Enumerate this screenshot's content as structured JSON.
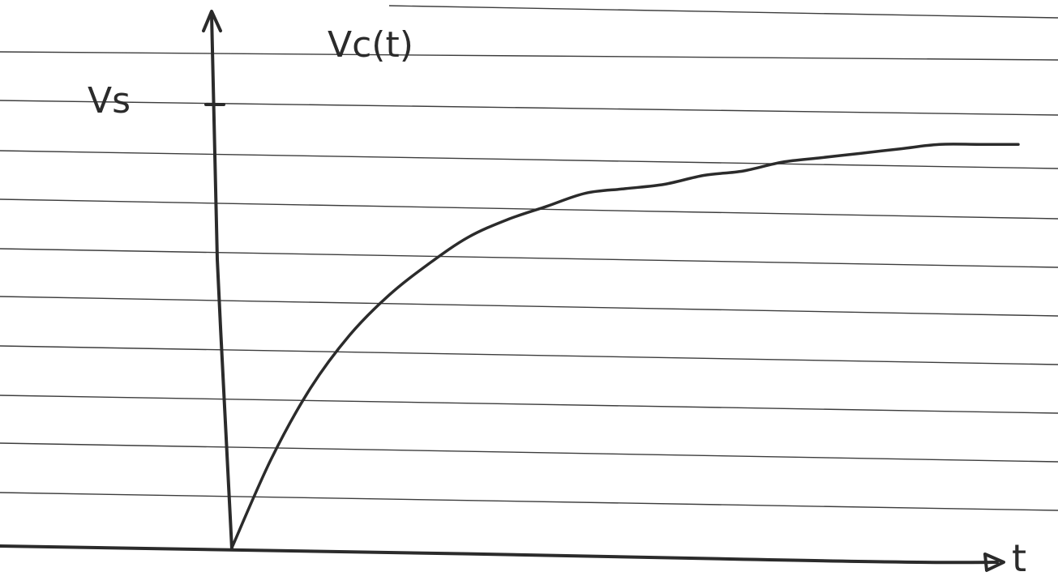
{
  "chart_data": {
    "type": "line",
    "title": "",
    "xlabel": "t",
    "ylabel": "Vc(t)",
    "y_tick_labels": [
      "Vs"
    ],
    "grid": false,
    "series": [
      {
        "x": [
          0,
          0.05,
          0.1,
          0.15,
          0.2,
          0.25,
          0.3,
          0.35,
          0.4,
          0.45,
          0.5,
          0.55,
          0.6,
          0.65,
          0.7,
          0.75,
          0.8,
          0.85,
          0.9,
          0.95,
          1.0
        ],
        "y": [
          0,
          0.2,
          0.36,
          0.48,
          0.57,
          0.64,
          0.7,
          0.74,
          0.77,
          0.8,
          0.81,
          0.82,
          0.84,
          0.85,
          0.87,
          0.88,
          0.89,
          0.9,
          0.91,
          0.91,
          0.91
        ]
      }
    ],
    "xlim": [
      0,
      1.0
    ],
    "ylim": [
      0,
      1.0
    ]
  },
  "colors": {
    "paper": "#ffffff",
    "ruled_lines": "#3d3d3d",
    "ink": "#2b2b2b"
  }
}
